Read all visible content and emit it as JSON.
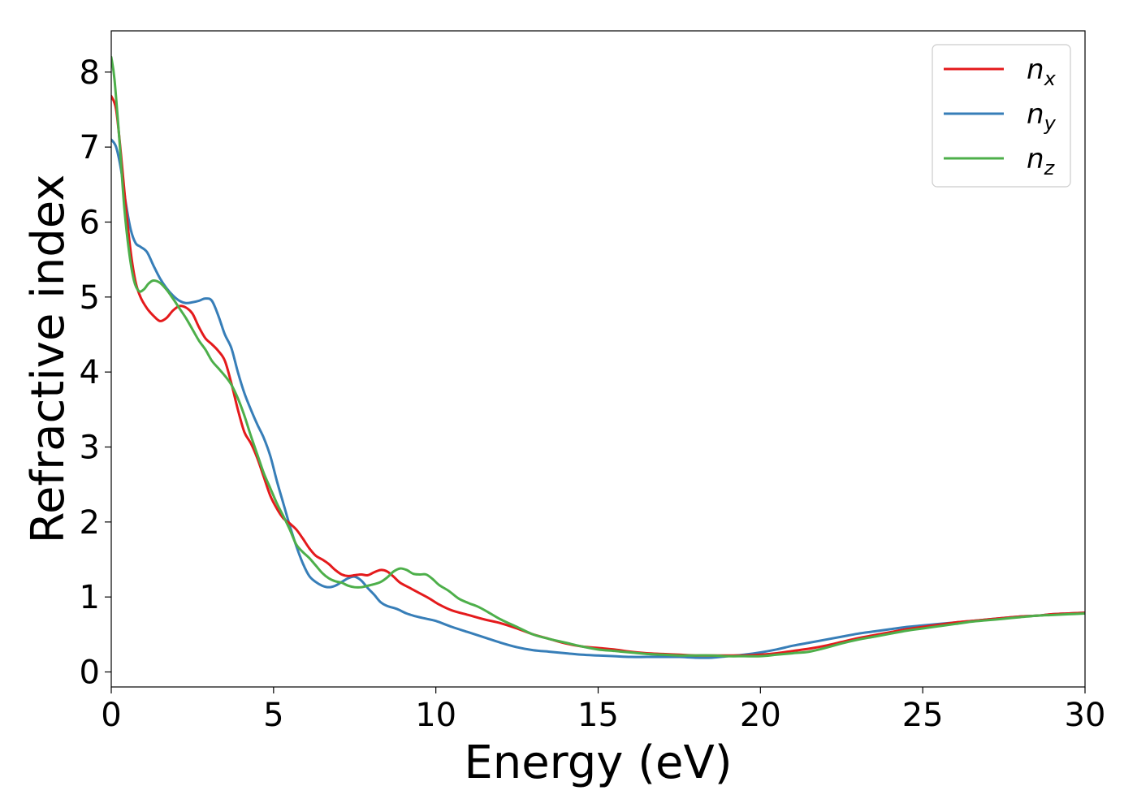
{
  "chart_data": {
    "type": "line",
    "xlabel": "Energy (eV)",
    "ylabel": "Refractive index",
    "xlim": [
      0,
      30
    ],
    "ylim": [
      -0.2,
      8.55
    ],
    "xticks": [
      0,
      5,
      10,
      15,
      20,
      25,
      30
    ],
    "yticks": [
      0,
      1,
      2,
      3,
      4,
      5,
      6,
      7,
      8
    ],
    "grid": false,
    "legend_position": "top-right",
    "series": [
      {
        "name": "n_x",
        "label_base": "n",
        "label_sub": "x",
        "color": "#e41a1c",
        "points": [
          [
            0,
            7.68
          ],
          [
            0.15,
            7.5
          ],
          [
            0.3,
            6.9
          ],
          [
            0.45,
            6.2
          ],
          [
            0.6,
            5.6
          ],
          [
            0.75,
            5.2
          ],
          [
            0.9,
            5.0
          ],
          [
            1.1,
            4.85
          ],
          [
            1.3,
            4.75
          ],
          [
            1.5,
            4.68
          ],
          [
            1.7,
            4.72
          ],
          [
            1.9,
            4.82
          ],
          [
            2.1,
            4.88
          ],
          [
            2.3,
            4.86
          ],
          [
            2.5,
            4.78
          ],
          [
            2.7,
            4.6
          ],
          [
            2.9,
            4.45
          ],
          [
            3.1,
            4.37
          ],
          [
            3.3,
            4.28
          ],
          [
            3.5,
            4.15
          ],
          [
            3.7,
            3.85
          ],
          [
            3.9,
            3.5
          ],
          [
            4.1,
            3.2
          ],
          [
            4.3,
            3.05
          ],
          [
            4.5,
            2.85
          ],
          [
            4.7,
            2.6
          ],
          [
            4.9,
            2.35
          ],
          [
            5.1,
            2.18
          ],
          [
            5.3,
            2.05
          ],
          [
            5.5,
            1.98
          ],
          [
            5.7,
            1.9
          ],
          [
            5.9,
            1.78
          ],
          [
            6.1,
            1.65
          ],
          [
            6.3,
            1.55
          ],
          [
            6.5,
            1.5
          ],
          [
            6.7,
            1.44
          ],
          [
            6.9,
            1.36
          ],
          [
            7.1,
            1.3
          ],
          [
            7.3,
            1.28
          ],
          [
            7.5,
            1.29
          ],
          [
            7.7,
            1.3
          ],
          [
            7.9,
            1.29
          ],
          [
            8.1,
            1.33
          ],
          [
            8.3,
            1.36
          ],
          [
            8.5,
            1.34
          ],
          [
            8.7,
            1.27
          ],
          [
            8.9,
            1.19
          ],
          [
            9.2,
            1.12
          ],
          [
            9.5,
            1.05
          ],
          [
            9.8,
            0.98
          ],
          [
            10.1,
            0.9
          ],
          [
            10.5,
            0.82
          ],
          [
            11,
            0.76
          ],
          [
            11.5,
            0.7
          ],
          [
            12,
            0.65
          ],
          [
            12.5,
            0.58
          ],
          [
            13,
            0.5
          ],
          [
            13.5,
            0.44
          ],
          [
            14,
            0.38
          ],
          [
            14.5,
            0.34
          ],
          [
            15,
            0.32
          ],
          [
            15.5,
            0.3
          ],
          [
            16,
            0.27
          ],
          [
            16.5,
            0.25
          ],
          [
            17,
            0.24
          ],
          [
            17.5,
            0.23
          ],
          [
            18,
            0.22
          ],
          [
            18.5,
            0.22
          ],
          [
            19,
            0.22
          ],
          [
            19.5,
            0.22
          ],
          [
            20,
            0.23
          ],
          [
            20.5,
            0.25
          ],
          [
            21,
            0.28
          ],
          [
            21.5,
            0.31
          ],
          [
            22,
            0.35
          ],
          [
            22.5,
            0.4
          ],
          [
            23,
            0.45
          ],
          [
            23.5,
            0.49
          ],
          [
            24,
            0.53
          ],
          [
            24.5,
            0.57
          ],
          [
            25,
            0.6
          ],
          [
            25.5,
            0.63
          ],
          [
            26,
            0.66
          ],
          [
            26.5,
            0.68
          ],
          [
            27,
            0.7
          ],
          [
            27.5,
            0.72
          ],
          [
            28,
            0.74
          ],
          [
            28.5,
            0.75
          ],
          [
            29,
            0.77
          ],
          [
            29.5,
            0.78
          ],
          [
            30,
            0.79
          ]
        ]
      },
      {
        "name": "n_y",
        "label_base": "n",
        "label_sub": "y",
        "color": "#377eb8",
        "points": [
          [
            0,
            7.1
          ],
          [
            0.15,
            7.0
          ],
          [
            0.3,
            6.7
          ],
          [
            0.45,
            6.25
          ],
          [
            0.6,
            5.9
          ],
          [
            0.75,
            5.72
          ],
          [
            0.9,
            5.67
          ],
          [
            1.1,
            5.6
          ],
          [
            1.3,
            5.42
          ],
          [
            1.5,
            5.25
          ],
          [
            1.7,
            5.12
          ],
          [
            1.9,
            5.02
          ],
          [
            2.1,
            4.95
          ],
          [
            2.3,
            4.92
          ],
          [
            2.5,
            4.93
          ],
          [
            2.7,
            4.95
          ],
          [
            2.9,
            4.98
          ],
          [
            3.1,
            4.95
          ],
          [
            3.3,
            4.75
          ],
          [
            3.5,
            4.5
          ],
          [
            3.7,
            4.32
          ],
          [
            3.9,
            4.0
          ],
          [
            4.1,
            3.72
          ],
          [
            4.3,
            3.5
          ],
          [
            4.5,
            3.3
          ],
          [
            4.7,
            3.12
          ],
          [
            4.9,
            2.88
          ],
          [
            5.1,
            2.55
          ],
          [
            5.3,
            2.25
          ],
          [
            5.5,
            1.95
          ],
          [
            5.7,
            1.68
          ],
          [
            5.9,
            1.45
          ],
          [
            6.1,
            1.28
          ],
          [
            6.3,
            1.2
          ],
          [
            6.5,
            1.15
          ],
          [
            6.7,
            1.13
          ],
          [
            6.9,
            1.15
          ],
          [
            7.1,
            1.2
          ],
          [
            7.3,
            1.25
          ],
          [
            7.5,
            1.27
          ],
          [
            7.7,
            1.22
          ],
          [
            7.9,
            1.12
          ],
          [
            8.1,
            1.03
          ],
          [
            8.3,
            0.93
          ],
          [
            8.5,
            0.88
          ],
          [
            8.8,
            0.84
          ],
          [
            9.1,
            0.78
          ],
          [
            9.4,
            0.74
          ],
          [
            9.7,
            0.71
          ],
          [
            10,
            0.68
          ],
          [
            10.5,
            0.6
          ],
          [
            11,
            0.53
          ],
          [
            11.5,
            0.46
          ],
          [
            12,
            0.39
          ],
          [
            12.5,
            0.33
          ],
          [
            13,
            0.29
          ],
          [
            13.5,
            0.27
          ],
          [
            14,
            0.25
          ],
          [
            14.5,
            0.23
          ],
          [
            15,
            0.22
          ],
          [
            15.5,
            0.21
          ],
          [
            16,
            0.2
          ],
          [
            16.5,
            0.2
          ],
          [
            17,
            0.2
          ],
          [
            17.5,
            0.2
          ],
          [
            18,
            0.19
          ],
          [
            18.5,
            0.19
          ],
          [
            19,
            0.21
          ],
          [
            19.5,
            0.23
          ],
          [
            20,
            0.26
          ],
          [
            20.5,
            0.3
          ],
          [
            21,
            0.35
          ],
          [
            21.5,
            0.39
          ],
          [
            22,
            0.43
          ],
          [
            22.5,
            0.47
          ],
          [
            23,
            0.51
          ],
          [
            23.5,
            0.54
          ],
          [
            24,
            0.57
          ],
          [
            24.5,
            0.6
          ],
          [
            25,
            0.62
          ],
          [
            25.5,
            0.64
          ],
          [
            26,
            0.66
          ],
          [
            26.5,
            0.68
          ],
          [
            27,
            0.7
          ],
          [
            27.5,
            0.72
          ],
          [
            28,
            0.74
          ],
          [
            28.5,
            0.75
          ],
          [
            29,
            0.77
          ],
          [
            29.5,
            0.78
          ],
          [
            30,
            0.79
          ]
        ]
      },
      {
        "name": "n_z",
        "label_base": "n",
        "label_sub": "z",
        "color": "#4daf4a",
        "points": [
          [
            0,
            8.2
          ],
          [
            0.1,
            7.9
          ],
          [
            0.25,
            7.1
          ],
          [
            0.4,
            6.2
          ],
          [
            0.55,
            5.6
          ],
          [
            0.7,
            5.22
          ],
          [
            0.85,
            5.08
          ],
          [
            1.0,
            5.1
          ],
          [
            1.15,
            5.18
          ],
          [
            1.3,
            5.22
          ],
          [
            1.5,
            5.19
          ],
          [
            1.7,
            5.1
          ],
          [
            1.9,
            4.98
          ],
          [
            2.1,
            4.85
          ],
          [
            2.3,
            4.72
          ],
          [
            2.5,
            4.57
          ],
          [
            2.7,
            4.42
          ],
          [
            2.9,
            4.3
          ],
          [
            3.1,
            4.15
          ],
          [
            3.3,
            4.05
          ],
          [
            3.5,
            3.95
          ],
          [
            3.7,
            3.83
          ],
          [
            3.9,
            3.65
          ],
          [
            4.1,
            3.42
          ],
          [
            4.3,
            3.15
          ],
          [
            4.5,
            2.9
          ],
          [
            4.7,
            2.65
          ],
          [
            4.9,
            2.45
          ],
          [
            5.1,
            2.25
          ],
          [
            5.3,
            2.08
          ],
          [
            5.5,
            1.9
          ],
          [
            5.7,
            1.7
          ],
          [
            5.9,
            1.6
          ],
          [
            6.1,
            1.52
          ],
          [
            6.3,
            1.42
          ],
          [
            6.5,
            1.32
          ],
          [
            6.7,
            1.25
          ],
          [
            6.9,
            1.21
          ],
          [
            7.1,
            1.19
          ],
          [
            7.3,
            1.15
          ],
          [
            7.5,
            1.13
          ],
          [
            7.7,
            1.13
          ],
          [
            7.9,
            1.15
          ],
          [
            8.1,
            1.17
          ],
          [
            8.3,
            1.2
          ],
          [
            8.5,
            1.26
          ],
          [
            8.7,
            1.34
          ],
          [
            8.9,
            1.38
          ],
          [
            9.1,
            1.36
          ],
          [
            9.3,
            1.31
          ],
          [
            9.5,
            1.3
          ],
          [
            9.7,
            1.3
          ],
          [
            9.9,
            1.24
          ],
          [
            10.1,
            1.16
          ],
          [
            10.4,
            1.08
          ],
          [
            10.7,
            0.98
          ],
          [
            11,
            0.92
          ],
          [
            11.3,
            0.87
          ],
          [
            11.6,
            0.8
          ],
          [
            12,
            0.7
          ],
          [
            12.5,
            0.6
          ],
          [
            13,
            0.5
          ],
          [
            13.5,
            0.44
          ],
          [
            14,
            0.39
          ],
          [
            14.5,
            0.34
          ],
          [
            15,
            0.3
          ],
          [
            15.5,
            0.28
          ],
          [
            16,
            0.26
          ],
          [
            16.5,
            0.24
          ],
          [
            17,
            0.23
          ],
          [
            17.5,
            0.22
          ],
          [
            18,
            0.22
          ],
          [
            18.5,
            0.22
          ],
          [
            19,
            0.21
          ],
          [
            19.5,
            0.21
          ],
          [
            20,
            0.21
          ],
          [
            20.5,
            0.23
          ],
          [
            21,
            0.25
          ],
          [
            21.5,
            0.27
          ],
          [
            22,
            0.32
          ],
          [
            22.5,
            0.38
          ],
          [
            23,
            0.43
          ],
          [
            23.5,
            0.47
          ],
          [
            24,
            0.51
          ],
          [
            24.5,
            0.55
          ],
          [
            25,
            0.58
          ],
          [
            25.5,
            0.61
          ],
          [
            26,
            0.64
          ],
          [
            26.5,
            0.67
          ],
          [
            27,
            0.69
          ],
          [
            27.5,
            0.71
          ],
          [
            28,
            0.73
          ],
          [
            28.5,
            0.75
          ],
          [
            29,
            0.76
          ],
          [
            29.5,
            0.77
          ],
          [
            30,
            0.78
          ]
        ]
      }
    ]
  }
}
